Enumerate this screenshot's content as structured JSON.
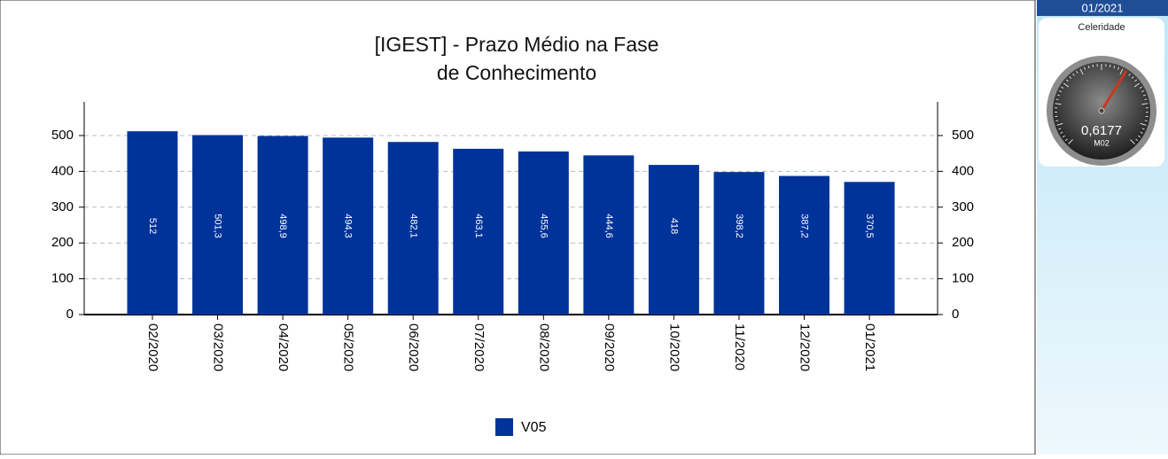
{
  "chart_data": {
    "type": "bar",
    "title": [
      "[IGEST]  - Prazo Médio na Fase",
      "de Conhecimento"
    ],
    "categories": [
      "02/2020",
      "03/2020",
      "04/2020",
      "05/2020",
      "06/2020",
      "07/2020",
      "08/2020",
      "09/2020",
      "10/2020",
      "11/2020",
      "12/2020",
      "01/2021"
    ],
    "series": [
      {
        "name": "V05",
        "color": "#003399",
        "values": [
          512,
          501.3,
          498.9,
          494.3,
          482.1,
          463.1,
          455.6,
          444.6,
          418,
          398.2,
          387.2,
          370.5
        ],
        "value_labels": [
          "512",
          "501,3",
          "498,9",
          "494,3",
          "482,1",
          "463,1",
          "455,6",
          "444,6",
          "418",
          "398,2",
          "387,2",
          "370,5"
        ]
      }
    ],
    "ylim": [
      0,
      594
    ],
    "yticks": [
      0,
      100,
      200,
      300,
      400,
      500
    ],
    "y2lim": [
      0,
      594
    ],
    "y2ticks": [
      0,
      100,
      200,
      300,
      400,
      500
    ],
    "grid": true,
    "legend": "bottom"
  },
  "sidebar": {
    "period": "01/2021",
    "gauge": {
      "title": "Celeridade",
      "value": 0.6177,
      "value_label": "0,6177",
      "subtitle": "M02",
      "range": [
        0,
        1
      ]
    }
  }
}
